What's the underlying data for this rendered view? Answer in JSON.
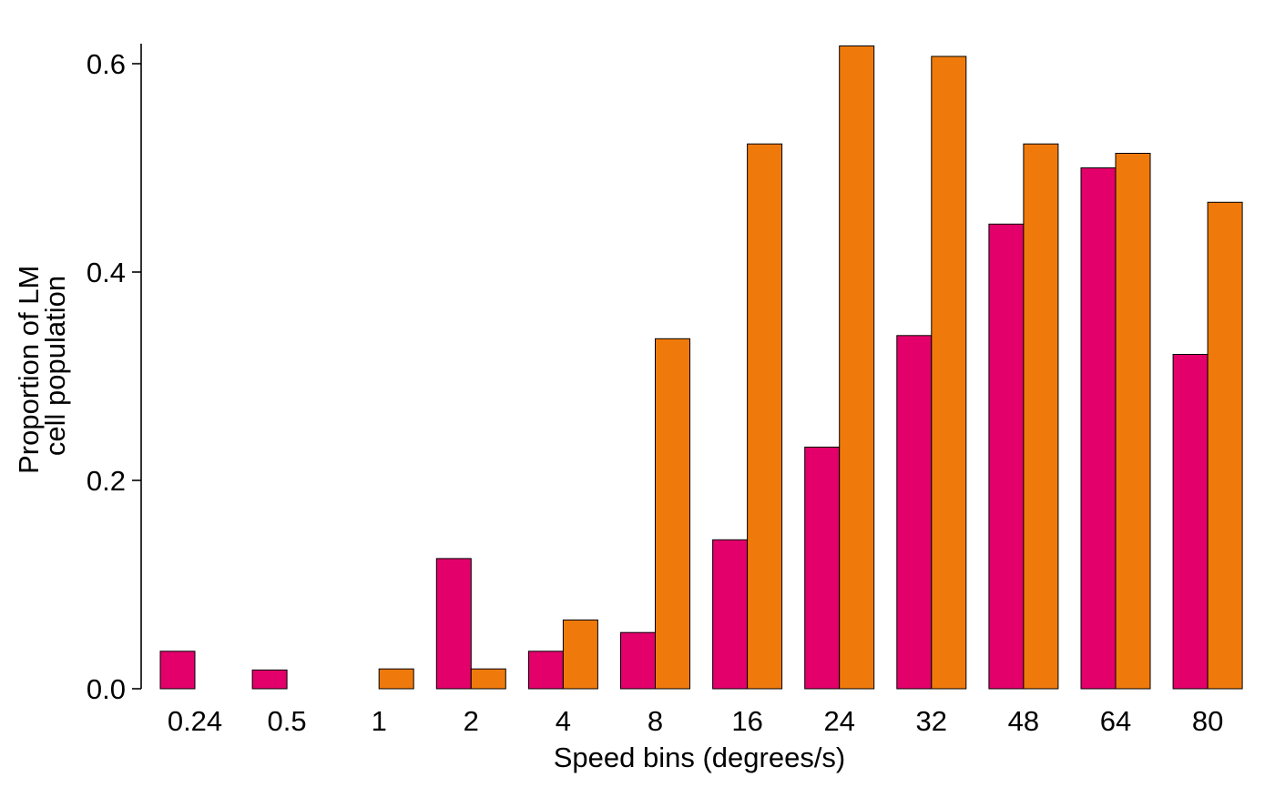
{
  "chart_data": {
    "type": "bar",
    "title": "",
    "xlabel": "Speed bins (degrees/s)",
    "ylabel_lines": [
      "Proportion of LM",
      "cell population"
    ],
    "categories": [
      "0.24",
      "0.5",
      "1",
      "2",
      "4",
      "8",
      "16",
      "24",
      "32",
      "48",
      "64",
      "80"
    ],
    "series": [
      {
        "color": "#e3006b",
        "values": [
          0.036,
          0.018,
          0.0,
          0.125,
          0.036,
          0.054,
          0.143,
          0.232,
          0.339,
          0.446,
          0.5,
          0.321
        ]
      },
      {
        "color": "#ef7a0b",
        "values": [
          0.0,
          0.0,
          0.019,
          0.019,
          0.066,
          0.336,
          0.523,
          0.617,
          0.607,
          0.523,
          0.514,
          0.467
        ]
      }
    ],
    "ylim": [
      0,
      0.6
    ],
    "yticks": [
      0.0,
      0.2,
      0.4,
      0.6
    ],
    "ytick_labels": [
      "0.0",
      "0.2",
      "0.4",
      "0.6"
    ],
    "grid": false,
    "legend": "none"
  }
}
